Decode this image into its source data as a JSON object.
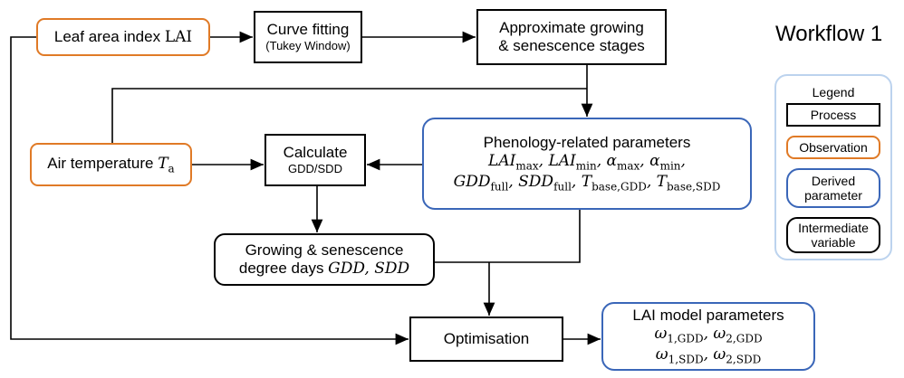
{
  "title": "Workflow 1",
  "legend": {
    "title": "Legend",
    "items": [
      "Process",
      "Observation",
      "Derived parameter",
      "Intermediate variable"
    ]
  },
  "nodes": [
    {
      "lines": [
        [
          "Leaf area index ",
          {
            "m": "LAI",
            "roman": true
          }
        ]
      ]
    },
    {
      "lines": [
        [
          "Curve fitting"
        ],
        [
          "(Tukey Window)"
        ]
      ]
    },
    {
      "lines": [
        [
          "Approximate growing"
        ],
        [
          "& senescence stages"
        ]
      ]
    },
    {
      "lines": [
        [
          "Phenology-related parameters"
        ],
        [
          {
            "m": "LAI",
            "sub": "max"
          },
          {
            "m": ", "
          },
          {
            "m": "LAI",
            "sub": "min"
          },
          {
            "m": ", "
          },
          {
            "m": "α",
            "sub": "max"
          },
          {
            "m": ", "
          },
          {
            "m": "α",
            "sub": "min"
          },
          {
            "m": ","
          }
        ],
        [
          {
            "m": "GDD",
            "sub": "full"
          },
          {
            "m": ", "
          },
          {
            "m": "SDD",
            "sub": "full"
          },
          {
            "m": ", "
          },
          {
            "m": "T",
            "sub": "base,GDD"
          },
          {
            "m": ", "
          },
          {
            "m": "T",
            "sub": "base,SDD"
          }
        ]
      ]
    },
    {
      "lines": [
        [
          "Air temperature ",
          {
            "m": "T",
            "sub": "a"
          }
        ]
      ]
    },
    {
      "lines": [
        [
          "Calculate"
        ],
        [
          "GDD/SDD"
        ]
      ]
    },
    {
      "lines": [
        [
          "Growing & senescence"
        ],
        [
          "degree days ",
          {
            "m": "GDD"
          },
          {
            "m": ", "
          },
          {
            "m": "SDD"
          }
        ]
      ]
    },
    {
      "lines": [
        [
          "Optimisation"
        ]
      ]
    },
    {
      "lines": [
        [
          "LAI model parameters"
        ],
        [
          {
            "m": "ω",
            "sub": "1,GDD"
          },
          {
            "m": ", "
          },
          {
            "m": "ω",
            "sub": "2,GDD"
          }
        ],
        [
          {
            "m": "ω",
            "sub": "1,SDD"
          },
          {
            "m": ", "
          },
          {
            "m": "ω",
            "sub": "2,SDD"
          }
        ]
      ]
    }
  ]
}
